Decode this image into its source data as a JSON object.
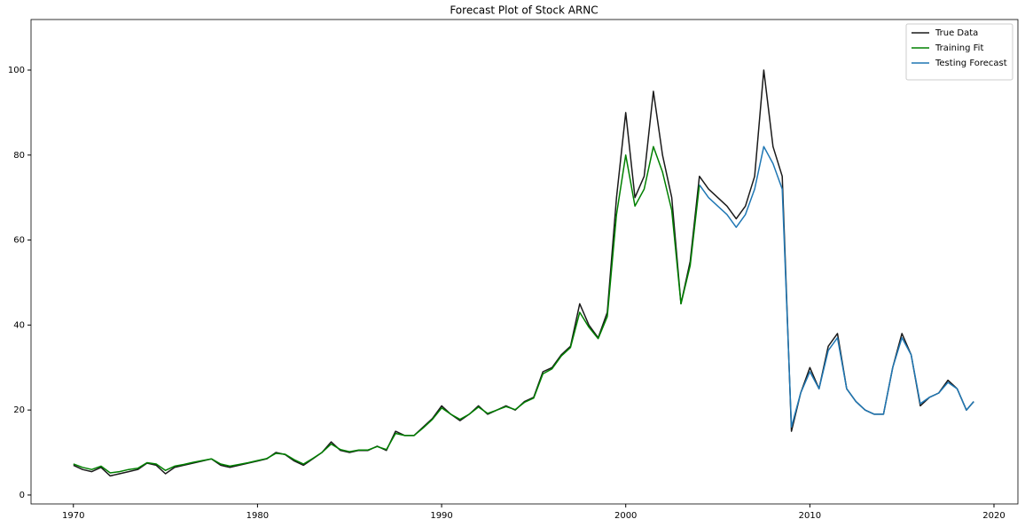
{
  "chart_data": {
    "type": "line",
    "title": "Forecast Plot of Stock ARNC",
    "x": [
      1970.0,
      1970.5,
      1971.0,
      1971.5,
      1972.0,
      1972.5,
      1973.0,
      1973.5,
      1974.0,
      1974.5,
      1975.0,
      1975.5,
      1976.0,
      1976.5,
      1977.0,
      1977.5,
      1978.0,
      1978.5,
      1979.0,
      1979.5,
      1980.0,
      1980.5,
      1981.0,
      1981.5,
      1982.0,
      1982.5,
      1983.0,
      1983.5,
      1984.0,
      1984.5,
      1985.0,
      1985.5,
      1986.0,
      1986.5,
      1987.0,
      1987.5,
      1988.0,
      1988.5,
      1989.0,
      1989.5,
      1990.0,
      1990.5,
      1991.0,
      1991.5,
      1992.0,
      1992.5,
      1993.0,
      1993.5,
      1994.0,
      1994.5,
      1995.0,
      1995.5,
      1996.0,
      1996.5,
      1997.0,
      1997.5,
      1998.0,
      1998.5,
      1999.0,
      1999.5,
      2000.0,
      2000.5,
      2001.0,
      2001.5,
      2002.0,
      2002.5,
      2003.0,
      2003.5,
      2004.0,
      2004.5,
      2005.0,
      2005.5,
      2006.0,
      2006.5,
      2007.0,
      2007.5,
      2008.0,
      2008.5,
      2009.0,
      2009.5,
      2010.0,
      2010.5,
      2011.0,
      2011.5,
      2012.0,
      2012.5,
      2013.0,
      2013.5,
      2014.0,
      2014.5,
      2015.0,
      2015.5,
      2016.0,
      2016.5,
      2017.0,
      2017.5,
      2018.0,
      2018.5,
      2018.9
    ],
    "series": [
      {
        "name": "True Data",
        "color": "#1a1a1a",
        "values": [
          7,
          6,
          5.5,
          6.5,
          4.5,
          5,
          5.5,
          6,
          7.5,
          7,
          5,
          6.5,
          7,
          7.5,
          8,
          8.5,
          7,
          6.5,
          7,
          7.5,
          8,
          8.5,
          10,
          9.5,
          8,
          7,
          8.5,
          10,
          12.5,
          10.5,
          10,
          10.5,
          10.5,
          11.5,
          10.5,
          15,
          14,
          14,
          16,
          18,
          21,
          19,
          17.5,
          19,
          21,
          19,
          20,
          21,
          20,
          22,
          23,
          29,
          30,
          33,
          35,
          45,
          40,
          37,
          43,
          70,
          90,
          70,
          75,
          95,
          80,
          70,
          45,
          55,
          75,
          72,
          70,
          68,
          65,
          68,
          75,
          100,
          82,
          75,
          15,
          24,
          30,
          25,
          35,
          38,
          25,
          22,
          20,
          19,
          19,
          30,
          38,
          33,
          21,
          23,
          24,
          27,
          25,
          20,
          22
        ]
      },
      {
        "name": "Training Fit",
        "color": "#008000",
        "values": [
          7.3,
          6.5,
          6,
          6.8,
          5.2,
          5.5,
          6,
          6.3,
          7.6,
          7.3,
          5.8,
          6.8,
          7.2,
          7.7,
          8.1,
          8.5,
          7.3,
          6.8,
          7.2,
          7.6,
          8.1,
          8.6,
          9.8,
          9.6,
          8.3,
          7.3,
          8.6,
          10,
          12,
          10.7,
          10.2,
          10.6,
          10.6,
          11.4,
          10.7,
          14.5,
          14,
          14,
          15.8,
          17.8,
          20.5,
          19,
          17.8,
          19,
          20.7,
          19.2,
          20,
          20.8,
          20.1,
          21.8,
          22.8,
          28.5,
          29.7,
          32.7,
          34.7,
          43,
          39.5,
          36.8,
          42,
          66,
          80,
          68,
          72,
          82,
          76,
          67,
          45,
          54,
          73,
          null,
          null,
          null,
          null,
          null,
          null,
          null,
          null,
          null,
          null,
          null,
          null,
          null,
          null,
          null,
          null,
          null,
          null,
          null,
          null,
          null,
          null,
          null,
          null,
          null,
          null,
          null,
          null,
          null,
          null
        ]
      },
      {
        "name": "Testing Forecast",
        "color": "#1f77b4",
        "values": [
          null,
          null,
          null,
          null,
          null,
          null,
          null,
          null,
          null,
          null,
          null,
          null,
          null,
          null,
          null,
          null,
          null,
          null,
          null,
          null,
          null,
          null,
          null,
          null,
          null,
          null,
          null,
          null,
          null,
          null,
          null,
          null,
          null,
          null,
          null,
          null,
          null,
          null,
          null,
          null,
          null,
          null,
          null,
          null,
          null,
          null,
          null,
          null,
          null,
          null,
          null,
          null,
          null,
          null,
          null,
          null,
          null,
          null,
          null,
          null,
          null,
          null,
          null,
          null,
          null,
          null,
          null,
          null,
          73,
          70,
          68,
          66,
          63,
          66,
          72,
          82,
          78,
          72,
          16,
          24,
          29,
          25,
          34,
          37,
          25,
          22,
          20,
          19,
          19,
          30,
          37,
          33,
          21.5,
          23,
          24,
          26.5,
          25,
          20,
          22
        ]
      }
    ],
    "xlim": [
      1967.7,
      2021.3
    ],
    "xticks": [
      1970,
      1980,
      1990,
      2000,
      2010,
      2020
    ],
    "ylim": [
      -2.1,
      111.9
    ],
    "yticks": [
      0,
      20,
      40,
      60,
      80,
      100
    ],
    "legend": "upper right"
  }
}
